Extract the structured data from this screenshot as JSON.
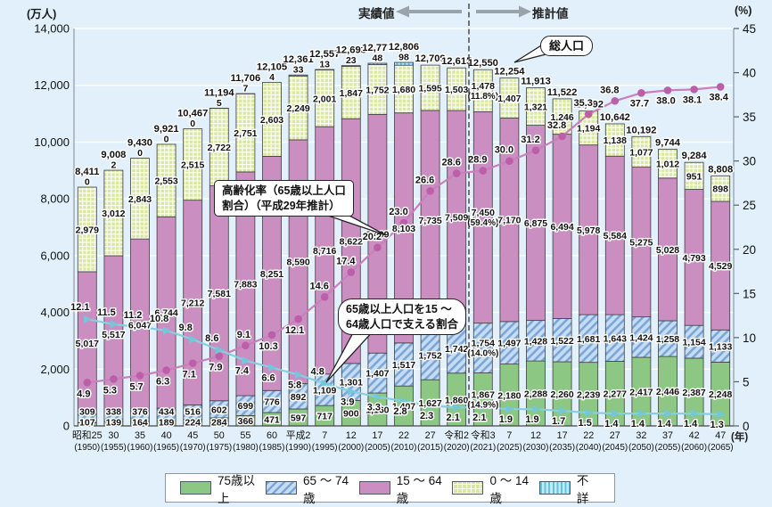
{
  "header": {
    "left_unit": "(万人)",
    "right_unit": "(%)",
    "year_unit": "(年)",
    "actual_label": "実績値",
    "projection_label": "推計値"
  },
  "annotations": {
    "total_population": "総人口",
    "aging_rate_line1": "高齢化率（65歳以上人口",
    "aging_rate_line2": "割合）（平成29年推計）",
    "support_line1": "65歳以上人口を15 〜",
    "support_line2": "64歳人口で支える割合"
  },
  "colors": {
    "background": "#e1f0fa",
    "bar_75plus": "#8cc884",
    "bar_15_64": "#cb8ec1",
    "hatch_stripe": "#7ba6d8",
    "grid_fill": "#d9e7a0",
    "vstripe": "#62c4de",
    "aging_line": "#c97fbd",
    "aging_marker": "#bb5fa8",
    "support_line": "#85cfe0",
    "support_marker": "#74c6da"
  },
  "chart_data": {
    "type": "stacked-bar+line",
    "x_era": [
      "昭和25",
      "30",
      "35",
      "40",
      "45",
      "50",
      "55",
      "60",
      "平成2",
      "7",
      "12",
      "17",
      "22",
      "27",
      "令和2",
      "令和3",
      "7",
      "12",
      "17",
      "22",
      "27",
      "32",
      "37",
      "42",
      "47"
    ],
    "x_year": [
      "(1950)",
      "(1955)",
      "(1960)",
      "(1965)",
      "(1970)",
      "(1975)",
      "(1980)",
      "(1985)",
      "(1990)",
      "(1995)",
      "(2000)",
      "(2005)",
      "(2010)",
      "(2015)",
      "(2020)",
      "(2021)",
      "(2025)",
      "(2030)",
      "(2035)",
      "(2040)",
      "(2045)",
      "(2050)",
      "(2055)",
      "(2060)",
      "(2065)"
    ],
    "ylim_left": [
      0,
      14000
    ],
    "left_tick_step": 2000,
    "ylim_right": [
      0,
      45
    ],
    "right_tick_step": 5,
    "series": [
      {
        "key": "75plus",
        "label": "75歳以上",
        "values": [
          107,
          139,
          164,
          189,
          224,
          284,
          366,
          471,
          597,
          717,
          900,
          1160,
          1407,
          1627,
          1860,
          1867,
          2180,
          2288,
          2260,
          2239,
          2277,
          2417,
          2446,
          2387,
          2248
        ],
        "pct_notes": {
          "15": "(14.9%)"
        }
      },
      {
        "key": "65_74",
        "label": "65 〜 74歳",
        "values": [
          309,
          338,
          376,
          434,
          516,
          602,
          699,
          776,
          892,
          1109,
          1301,
          1407,
          1517,
          1752,
          1742,
          1754,
          1497,
          1428,
          1522,
          1681,
          1643,
          1424,
          1258,
          1154,
          1133
        ],
        "pct_notes": {
          "15": "(14.0%)"
        }
      },
      {
        "key": "15_64",
        "label": "15 〜 64歳",
        "values": [
          5017,
          5517,
          6047,
          6744,
          7212,
          7581,
          7883,
          8251,
          8590,
          8716,
          8622,
          8409,
          8103,
          7735,
          7509,
          7450,
          7170,
          6875,
          6494,
          5978,
          5584,
          5275,
          5028,
          4793,
          4529
        ],
        "pct_notes": {
          "15": "(59.4%)"
        }
      },
      {
        "key": "0_14",
        "label": "0 〜 14歳",
        "values": [
          2979,
          3012,
          2843,
          2553,
          2515,
          2722,
          2751,
          2603,
          2249,
          2001,
          1847,
          1752,
          1680,
          1595,
          1503,
          1478,
          1407,
          1321,
          1246,
          1194,
          1138,
          1077,
          1012,
          951,
          898
        ],
        "pct_notes": {
          "15": "(11.8%)"
        }
      },
      {
        "key": "unknown",
        "label": "不詳",
        "values": [
          0,
          2,
          0,
          0,
          0,
          5,
          7,
          4,
          33,
          13,
          23,
          48,
          98,
          0,
          0,
          0,
          0,
          0,
          0,
          0,
          0,
          0,
          0,
          0,
          0
        ],
        "label_show_until_index": 12
      }
    ],
    "totals": [
      8411,
      9008,
      9430,
      9921,
      10467,
      11194,
      11706,
      12105,
      12361,
      12557,
      12693,
      12777,
      12806,
      12709,
      12615,
      12550,
      12254,
      11913,
      11522,
      11092,
      10642,
      10192,
      9744,
      9284,
      8808
    ],
    "aging_rate": [
      4.9,
      5.3,
      5.7,
      6.3,
      7.1,
      7.9,
      9.1,
      10.3,
      12.1,
      14.6,
      17.4,
      20.2,
      23.0,
      26.6,
      28.6,
      28.9,
      30.0,
      31.2,
      32.8,
      35.3,
      36.8,
      37.7,
      38.0,
      38.1,
      38.4
    ],
    "support_ratio": [
      12.1,
      11.5,
      11.2,
      10.8,
      9.8,
      8.6,
      7.4,
      6.6,
      5.8,
      4.8,
      3.9,
      3.3,
      2.8,
      2.3,
      2.1,
      2.1,
      1.9,
      1.9,
      1.7,
      1.5,
      1.4,
      1.4,
      1.4,
      1.4,
      1.3
    ]
  },
  "legend": [
    {
      "label": "75歳以上"
    },
    {
      "label": "65 〜 74歳"
    },
    {
      "label": "15 〜 64歳"
    },
    {
      "label": "0 〜 14歳"
    },
    {
      "label": "不詳"
    }
  ]
}
